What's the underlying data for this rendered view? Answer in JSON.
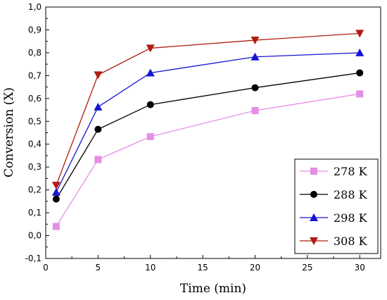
{
  "chart_data": {
    "type": "line",
    "title": "",
    "xlabel": "Time (min)",
    "ylabel": "Conversion (X)",
    "xlim": [
      0,
      32
    ],
    "ylim": [
      -0.1,
      1.0
    ],
    "x_ticks": [
      0,
      5,
      10,
      15,
      20,
      25,
      30
    ],
    "x_tick_labels": [
      "0",
      "5",
      "10",
      "15",
      "20",
      "25",
      "30"
    ],
    "y_ticks": [
      -0.1,
      0.0,
      0.1,
      0.2,
      0.3,
      0.4,
      0.5,
      0.6,
      0.7,
      0.8,
      0.9,
      1.0
    ],
    "y_tick_labels": [
      "-0,1",
      "0,0",
      "0,1",
      "0,2",
      "0,3",
      "0,4",
      "0,5",
      "0,6",
      "0,7",
      "0,8",
      "0,9",
      "1,0"
    ],
    "grid": false,
    "legend_position": "bottom-right",
    "x": [
      1,
      5,
      10,
      20,
      30
    ],
    "series": [
      {
        "name": "278 K",
        "values": [
          0.04,
          0.333,
          0.433,
          0.547,
          0.62
        ],
        "color": "#e58ee5",
        "marker": "square"
      },
      {
        "name": "288 K",
        "values": [
          0.16,
          0.465,
          0.573,
          0.647,
          0.712
        ],
        "color": "#000000",
        "marker": "circle"
      },
      {
        "name": "298 K",
        "values": [
          0.19,
          0.563,
          0.712,
          0.782,
          0.8
        ],
        "color": "#1515d0",
        "marker": "triangle-up"
      },
      {
        "name": "308 K",
        "values": [
          0.22,
          0.703,
          0.82,
          0.855,
          0.885
        ],
        "color": "#b01c10",
        "marker": "triangle-down"
      }
    ]
  }
}
